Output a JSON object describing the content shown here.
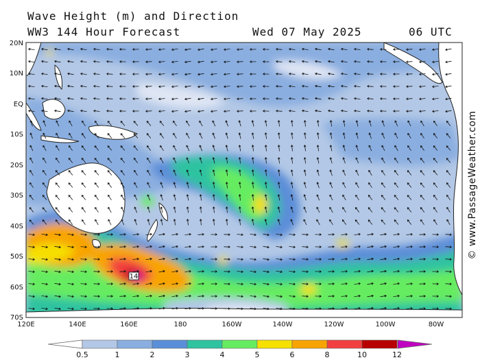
{
  "header": {
    "line1": "Wave Height (m) and Direction",
    "line2": "WW3 144 Hour Forecast",
    "date": "Wed 07 May 2025",
    "time": "06 UTC"
  },
  "credit": "© www.PassageWeather.com",
  "axes": {
    "lat_labels": [
      "20N",
      "10N",
      "EQ",
      "10S",
      "20S",
      "30S",
      "40S",
      "50S",
      "60S",
      "70S"
    ],
    "lon_labels": [
      "120E",
      "140E",
      "160E",
      "180",
      "160W",
      "140W",
      "120W",
      "100W",
      "80W"
    ]
  },
  "storm": {
    "label": "14",
    "peak_height_m": 14
  },
  "legend": {
    "ticks": [
      "0.5",
      "1",
      "2",
      "3",
      "4",
      "5",
      "6",
      "8",
      "10",
      "12"
    ],
    "colors": [
      "#dfe6f4",
      "#b3c8e6",
      "#8aaee0",
      "#5b8ed8",
      "#2fc3a0",
      "#66ec60",
      "#f6e000",
      "#f8a400",
      "#f24040",
      "#b80000",
      "#c000c0"
    ]
  },
  "colors": {
    "land": "#ffffff",
    "coast": "#222222",
    "arrow": "#111111"
  }
}
